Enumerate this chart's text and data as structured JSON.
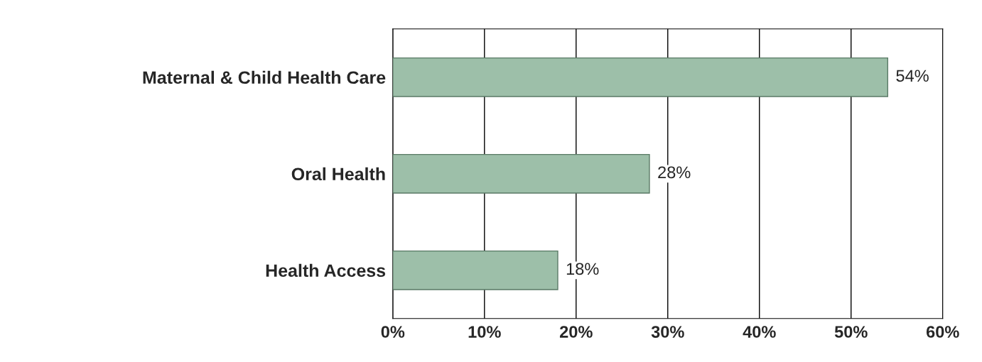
{
  "chart_data": {
    "type": "bar",
    "orientation": "horizontal",
    "categories": [
      "Maternal & Child Health Care",
      "Oral Health",
      "Health Access"
    ],
    "values": [
      54,
      28,
      18
    ],
    "value_labels": [
      "54%",
      "28%",
      "18%"
    ],
    "color": "#9dbfa9",
    "xlim": [
      0,
      60
    ],
    "xticks": [
      {
        "value": 0,
        "label": "0%"
      },
      {
        "value": 10,
        "label": "10%"
      },
      {
        "value": 20,
        "label": "20%"
      },
      {
        "value": 30,
        "label": "30%"
      },
      {
        "value": 40,
        "label": "40%"
      },
      {
        "value": 50,
        "label": "50%"
      },
      {
        "value": 60,
        "label": "60%"
      }
    ],
    "grid": "x"
  }
}
